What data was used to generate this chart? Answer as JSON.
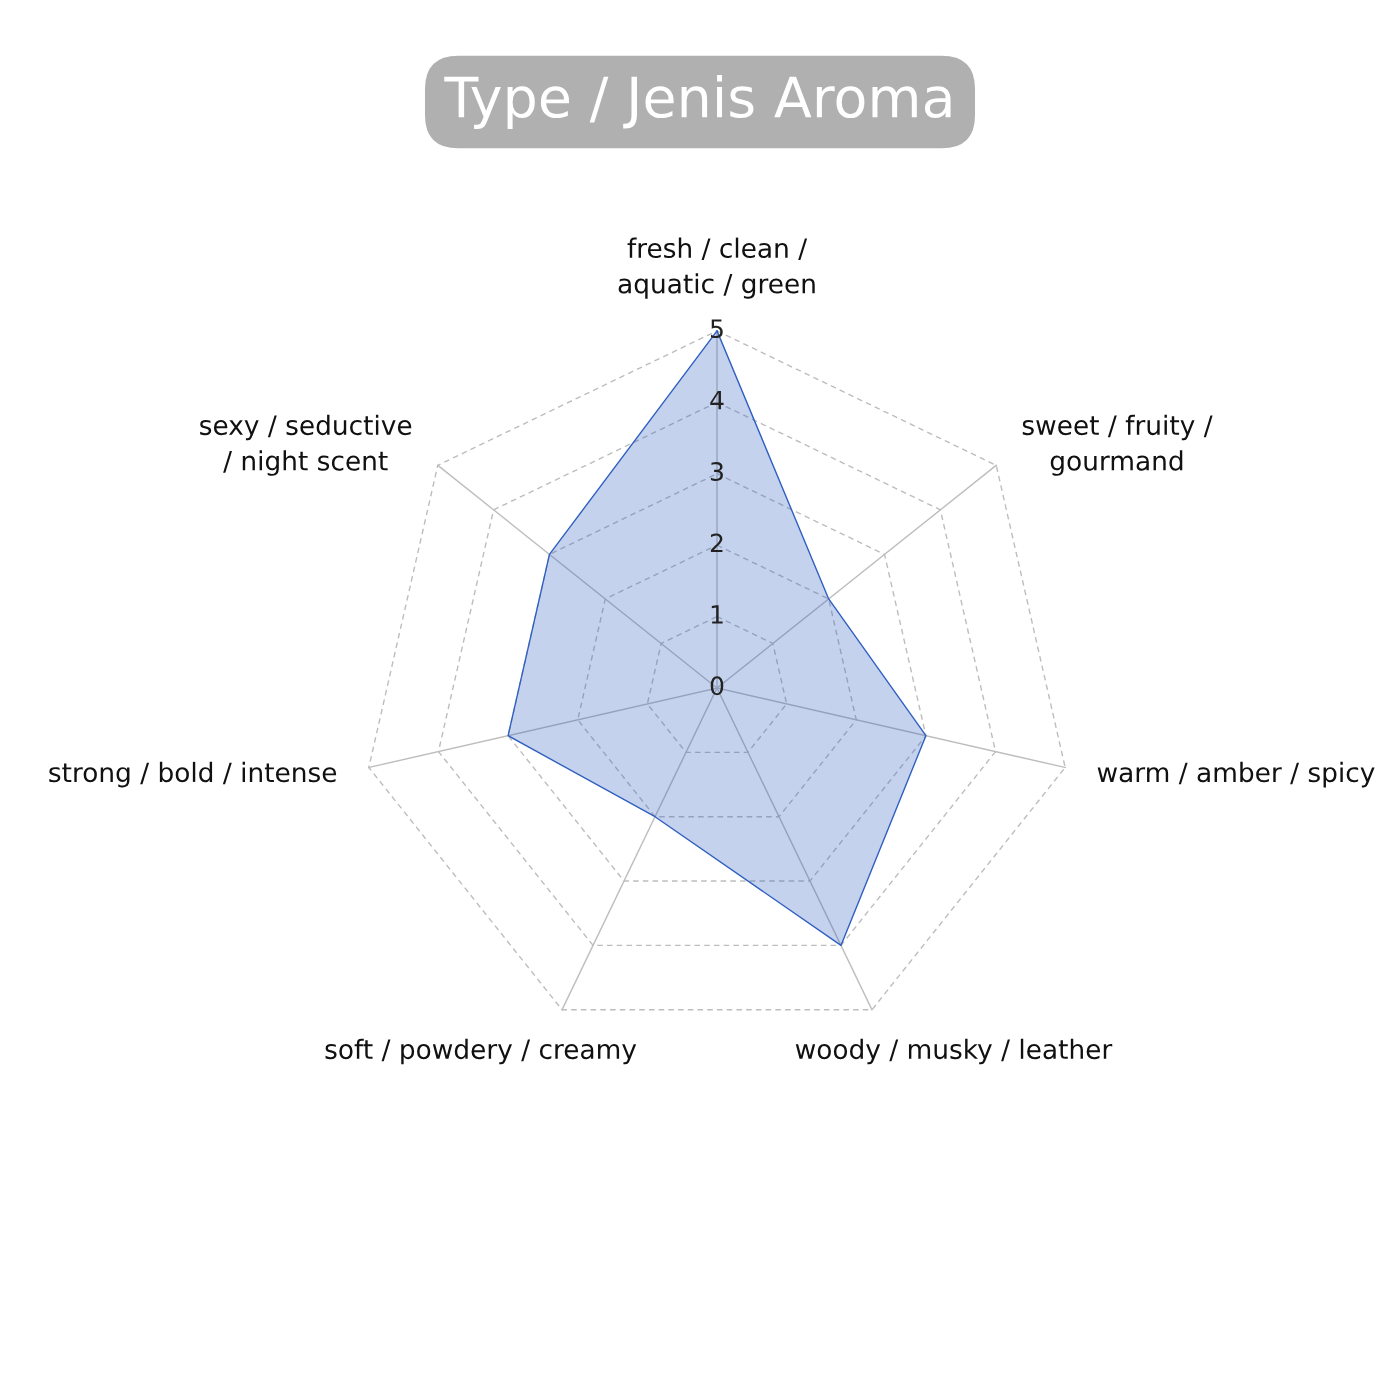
{
  "chart_data": {
    "type": "radar",
    "title": "Type / Jenis Aroma",
    "categories": [
      "fresh / clean /\naquatic / green",
      "sweet / fruity /\ngourmand",
      "warm / amber / spicy",
      "woody / musky / leather",
      "soft / powdery / creamy",
      "strong / bold / intense",
      "sexy / seductive\n/ night scent"
    ],
    "series": [
      {
        "color": "#2f5fc0",
        "values": [
          5,
          2,
          3,
          4,
          2,
          3,
          3
        ]
      }
    ],
    "ylim": [
      0,
      5
    ],
    "yticks": [
      0,
      1,
      2,
      3,
      4,
      5
    ],
    "grid": true
  }
}
